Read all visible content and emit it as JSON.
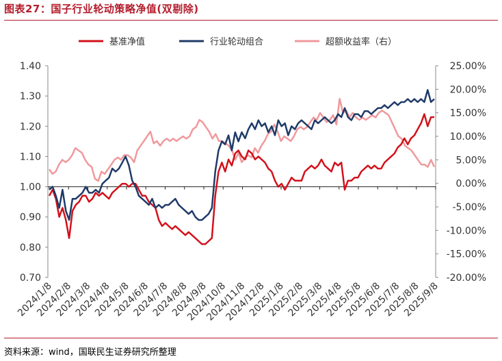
{
  "header": {
    "title": "图表27：国子行业轮动策略净值(双剔除)",
    "source": "资料来源：wind，国联民生证券研究所整理"
  },
  "chart_data": {
    "type": "line",
    "title": "国子行业轮动策略净值(双剔除)",
    "legend": [
      "基准净值",
      "行业轮动组合",
      "超额收益率（右）"
    ],
    "legend_position": "top",
    "x_ticks": [
      "2024/1/8",
      "2024/2/8",
      "2024/3/8",
      "2024/4/8",
      "2024/5/8",
      "2024/6/8",
      "2024/7/8",
      "2024/8/8",
      "2024/9/8",
      "2024/10/8",
      "2024/11/8",
      "2024/12/8",
      "2025/1/8",
      "2025/2/8",
      "2025/3/8",
      "2025/4/8",
      "2025/5/8",
      "2025/6/8",
      "2025/7/8",
      "2025/8/8",
      "2025/9/8"
    ],
    "y_left": {
      "ticks": [
        "0.70",
        "0.80",
        "0.90",
        "1.00",
        "1.10",
        "1.20",
        "1.30",
        "1.40"
      ],
      "ylim": [
        0.7,
        1.4
      ]
    },
    "y_right": {
      "ticks": [
        "-20.00%",
        "-15.00%",
        "-10.00%",
        "-5.00%",
        "0.00%",
        "5.00%",
        "10.00%",
        "15.00%",
        "20.00%",
        "25.00%"
      ],
      "ylim": [
        -20,
        25
      ]
    },
    "colors": {
      "benchmark": "#d2111b",
      "portfolio": "#1f3a68",
      "excess": "#f0999c"
    },
    "series": [
      {
        "name": "基准净值",
        "axis": "left",
        "values": [
          0.97,
          0.99,
          0.96,
          0.9,
          0.93,
          0.89,
          0.83,
          0.92,
          0.94,
          0.95,
          0.97,
          0.97,
          0.95,
          0.96,
          0.98,
          0.97,
          0.98,
          0.97,
          0.96,
          0.98,
          0.99,
          1.0,
          1.01,
          1.01,
          1.0,
          1.01,
          1.01,
          0.99,
          0.97,
          0.97,
          0.95,
          0.94,
          0.93,
          0.89,
          0.87,
          0.88,
          0.87,
          0.86,
          0.87,
          0.86,
          0.85,
          0.84,
          0.85,
          0.84,
          0.83,
          0.82,
          0.81,
          0.81,
          0.82,
          0.83,
          0.97,
          1.05,
          1.08,
          1.05,
          1.09,
          1.07,
          1.11,
          1.12,
          1.1,
          1.09,
          1.12,
          1.11,
          1.09,
          1.1,
          1.09,
          1.08,
          1.06,
          1.05,
          1.02,
          1.0,
          1.01,
          0.99,
          1.01,
          1.03,
          1.02,
          1.02,
          1.02,
          1.05,
          1.06,
          1.07,
          1.06,
          1.07,
          1.09,
          1.07,
          1.06,
          1.05,
          1.08,
          1.07,
          1.08,
          0.99,
          1.02,
          1.02,
          1.03,
          1.03,
          1.05,
          1.06,
          1.07,
          1.06,
          1.07,
          1.06,
          1.06,
          1.08,
          1.09,
          1.1,
          1.11,
          1.13,
          1.14,
          1.16,
          1.14,
          1.16,
          1.17,
          1.19,
          1.21,
          1.24,
          1.2,
          1.23,
          1.23
        ]
      },
      {
        "name": "行业轮动组合",
        "axis": "left",
        "values": [
          0.99,
          1.0,
          0.97,
          0.93,
          0.99,
          0.92,
          0.89,
          0.96,
          0.96,
          0.97,
          0.98,
          1.0,
          0.98,
          0.98,
          0.99,
          0.98,
          1.01,
          1.02,
          1.03,
          1.06,
          1.05,
          1.06,
          1.08,
          1.1,
          1.07,
          1.02,
          1.0,
          0.97,
          0.96,
          0.95,
          0.94,
          0.96,
          0.93,
          0.94,
          0.93,
          0.94,
          0.94,
          0.95,
          0.96,
          0.94,
          0.93,
          0.92,
          0.91,
          0.92,
          0.9,
          0.89,
          0.89,
          0.9,
          0.91,
          0.93,
          1.05,
          1.12,
          1.15,
          1.14,
          1.17,
          1.12,
          1.18,
          1.15,
          1.18,
          1.16,
          1.19,
          1.21,
          1.19,
          1.22,
          1.2,
          1.21,
          1.18,
          1.2,
          1.17,
          1.22,
          1.2,
          1.21,
          1.17,
          1.2,
          1.19,
          1.21,
          1.22,
          1.21,
          1.2,
          1.19,
          1.22,
          1.21,
          1.22,
          1.23,
          1.22,
          1.21,
          1.22,
          1.24,
          1.23,
          1.26,
          1.23,
          1.22,
          1.24,
          1.24,
          1.23,
          1.25,
          1.25,
          1.24,
          1.25,
          1.26,
          1.26,
          1.27,
          1.26,
          1.27,
          1.28,
          1.27,
          1.28,
          1.28,
          1.29,
          1.28,
          1.29,
          1.28,
          1.29,
          1.28,
          1.32,
          1.28,
          1.29
        ]
      },
      {
        "name": "超额收益率（右）",
        "axis": "right",
        "values": [
          3.0,
          2.0,
          2.5,
          4.0,
          5.0,
          4.5,
          5.0,
          6.0,
          7.5,
          7.0,
          6.5,
          5.0,
          4.0,
          3.5,
          1.0,
          0.5,
          2.5,
          2.0,
          3.0,
          4.0,
          5.0,
          5.5,
          5.0,
          6.0,
          6.0,
          5.5,
          4.5,
          7.0,
          8.0,
          9.0,
          10.0,
          11.0,
          8.5,
          9.0,
          8.0,
          9.0,
          9.5,
          9.0,
          9.5,
          9.0,
          9.5,
          10.0,
          9.5,
          10.0,
          11.5,
          12.0,
          13.5,
          13.0,
          12.0,
          11.0,
          9.5,
          10.5,
          9.0,
          9.0,
          8.5,
          8.0,
          7.0,
          5.0,
          6.5,
          4.5,
          5.5,
          6.0,
          5.5,
          7.5,
          6.5,
          8.0,
          9.0,
          10.5,
          11.0,
          12.5,
          11.0,
          9.0,
          10.0,
          9.5,
          9.0,
          10.0,
          11.5,
          12.0,
          11.5,
          12.0,
          13.0,
          14.0,
          13.5,
          15.0,
          14.0,
          13.0,
          13.5,
          14.5,
          12.5,
          18.0,
          15.0,
          15.5,
          14.0,
          15.0,
          14.0,
          13.5,
          14.0,
          13.5,
          14.0,
          14.5,
          14.0,
          15.0,
          15.5,
          15.0,
          14.5,
          13.0,
          11.5,
          10.0,
          9.5,
          8.0,
          7.5,
          7.0,
          6.0,
          5.0,
          4.0,
          4.0,
          3.5,
          5.0,
          3.5
        ]
      }
    ]
  }
}
